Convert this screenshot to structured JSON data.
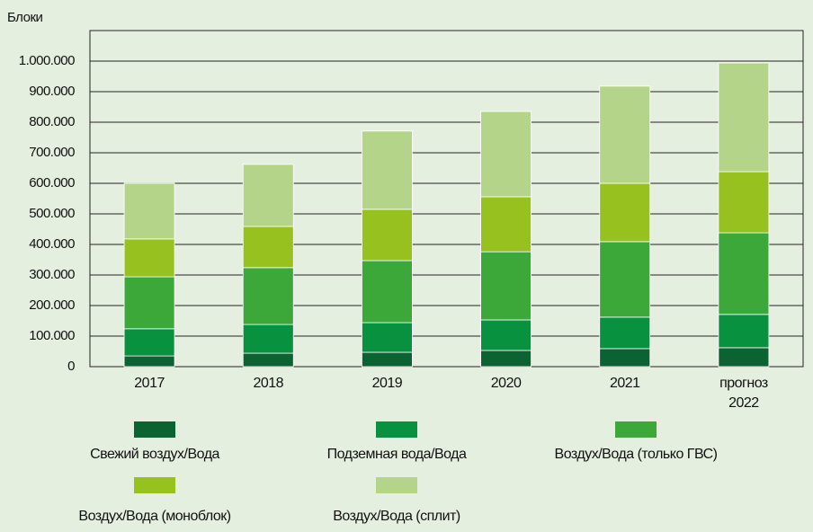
{
  "chart_data": {
    "type": "stacked_bar",
    "y_axis_label": "Блоки",
    "categories": [
      "2017",
      "2018",
      "2019",
      "2020",
      "2021",
      "прогноз 2022"
    ],
    "series": [
      {
        "name": "Свежий воздух/Вода",
        "color": "#0b6332",
        "values": [
          35000,
          44000,
          47000,
          53000,
          59000,
          62000
        ]
      },
      {
        "name": "Подземная вода/Вода",
        "color": "#08913f",
        "values": [
          89000,
          94000,
          97000,
          100000,
          103000,
          109000
        ]
      },
      {
        "name": "Воздух/Вода (только ГВС)",
        "color": "#3ca83a",
        "values": [
          170000,
          186000,
          203000,
          223000,
          247000,
          267000
        ]
      },
      {
        "name": "Воздух/Вода (моноблок)",
        "color": "#97c11f",
        "values": [
          124000,
          135000,
          168000,
          180000,
          191000,
          200000
        ]
      },
      {
        "name": "Воздух/Вода (сплит)",
        "color": "#b4d48a",
        "values": [
          182000,
          203000,
          256000,
          279000,
          318000,
          356000
        ]
      }
    ],
    "ylim": [
      0,
      1100000
    ],
    "yticks": [
      0,
      {
        "value": 100000,
        "label": "100.000"
      },
      {
        "value": 200000,
        "label": "200.000"
      },
      {
        "value": 300000,
        "label": "300.000"
      },
      {
        "value": 400000,
        "label": "400.000"
      },
      {
        "value": 500000,
        "label": "500.000"
      },
      {
        "value": 600000,
        "label": "600.000"
      },
      {
        "value": 700000,
        "label": "700.000"
      },
      {
        "value": 800000,
        "label": "800.000"
      },
      {
        "value": 900000,
        "label": "900.000"
      },
      {
        "value": 1000000,
        "label": "1.000.000"
      }
    ],
    "grid": true
  }
}
